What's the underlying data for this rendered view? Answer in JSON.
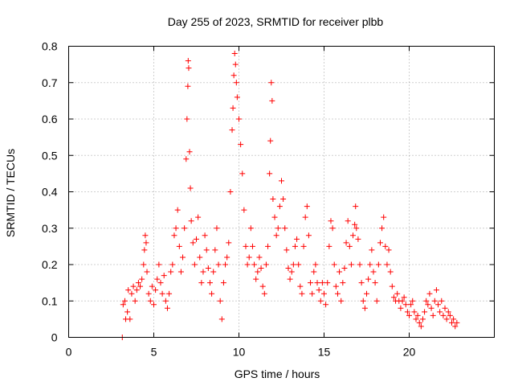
{
  "chart_data": {
    "type": "scatter",
    "title": "Day 255 of 2023, SRMTID for receiver plbb",
    "xlabel": "GPS time / hours",
    "ylabel": "SRMTID / TECUs",
    "xlim": [
      0,
      25
    ],
    "ylim": [
      0,
      0.8
    ],
    "xticks": [
      0,
      5,
      10,
      15,
      20
    ],
    "xtick_labels": [
      "0",
      "5",
      "10",
      "15",
      "20"
    ],
    "yticks": [
      0,
      0.1,
      0.2,
      0.3,
      0.4,
      0.5,
      0.6,
      0.7,
      0.8
    ],
    "ytick_labels": [
      "0",
      "0.1",
      "0.2",
      "0.3",
      "0.4",
      "0.5",
      "0.6",
      "0.7",
      "0.8"
    ],
    "grid": true,
    "marker": "plus",
    "color": "#ff0000",
    "series": [
      {
        "name": "SRMTID",
        "points": [
          [
            3.15,
            0.0
          ],
          [
            3.2,
            0.09
          ],
          [
            3.3,
            0.1
          ],
          [
            3.35,
            0.05
          ],
          [
            3.45,
            0.07
          ],
          [
            3.5,
            0.13
          ],
          [
            3.6,
            0.05
          ],
          [
            3.7,
            0.12
          ],
          [
            3.8,
            0.14
          ],
          [
            3.9,
            0.1
          ],
          [
            4.0,
            0.13
          ],
          [
            4.1,
            0.15
          ],
          [
            4.2,
            0.14
          ],
          [
            4.3,
            0.16
          ],
          [
            4.4,
            0.2
          ],
          [
            4.45,
            0.24
          ],
          [
            4.5,
            0.28
          ],
          [
            4.55,
            0.26
          ],
          [
            4.6,
            0.18
          ],
          [
            4.7,
            0.12
          ],
          [
            4.8,
            0.1
          ],
          [
            4.9,
            0.14
          ],
          [
            5.0,
            0.09
          ],
          [
            5.1,
            0.13
          ],
          [
            5.2,
            0.16
          ],
          [
            5.3,
            0.2
          ],
          [
            5.4,
            0.15
          ],
          [
            5.5,
            0.12
          ],
          [
            5.6,
            0.17
          ],
          [
            5.7,
            0.1
          ],
          [
            5.8,
            0.08
          ],
          [
            5.9,
            0.12
          ],
          [
            6.0,
            0.18
          ],
          [
            6.1,
            0.2
          ],
          [
            6.2,
            0.28
          ],
          [
            6.3,
            0.3
          ],
          [
            6.4,
            0.35
          ],
          [
            6.5,
            0.25
          ],
          [
            6.6,
            0.18
          ],
          [
            6.7,
            0.22
          ],
          [
            6.8,
            0.3
          ],
          [
            6.9,
            0.49
          ],
          [
            6.95,
            0.6
          ],
          [
            7.0,
            0.69
          ],
          [
            7.02,
            0.76
          ],
          [
            7.05,
            0.74
          ],
          [
            7.1,
            0.51
          ],
          [
            7.15,
            0.41
          ],
          [
            7.2,
            0.32
          ],
          [
            7.3,
            0.26
          ],
          [
            7.4,
            0.2
          ],
          [
            7.5,
            0.27
          ],
          [
            7.6,
            0.33
          ],
          [
            7.7,
            0.22
          ],
          [
            7.8,
            0.15
          ],
          [
            7.9,
            0.18
          ],
          [
            8.0,
            0.28
          ],
          [
            8.1,
            0.24
          ],
          [
            8.2,
            0.19
          ],
          [
            8.3,
            0.15
          ],
          [
            8.4,
            0.12
          ],
          [
            8.5,
            0.18
          ],
          [
            8.6,
            0.24
          ],
          [
            8.7,
            0.3
          ],
          [
            8.8,
            0.2
          ],
          [
            8.9,
            0.1
          ],
          [
            9.0,
            0.05
          ],
          [
            9.1,
            0.15
          ],
          [
            9.2,
            0.2
          ],
          [
            9.3,
            0.22
          ],
          [
            9.4,
            0.26
          ],
          [
            9.5,
            0.4
          ],
          [
            9.6,
            0.57
          ],
          [
            9.65,
            0.63
          ],
          [
            9.7,
            0.72
          ],
          [
            9.75,
            0.78
          ],
          [
            9.8,
            0.75
          ],
          [
            9.85,
            0.7
          ],
          [
            9.9,
            0.66
          ],
          [
            10.0,
            0.6
          ],
          [
            10.1,
            0.53
          ],
          [
            10.2,
            0.45
          ],
          [
            10.3,
            0.35
          ],
          [
            10.4,
            0.25
          ],
          [
            10.5,
            0.2
          ],
          [
            10.6,
            0.22
          ],
          [
            10.7,
            0.3
          ],
          [
            10.8,
            0.25
          ],
          [
            10.9,
            0.2
          ],
          [
            11.0,
            0.16
          ],
          [
            11.1,
            0.18
          ],
          [
            11.2,
            0.22
          ],
          [
            11.3,
            0.19
          ],
          [
            11.4,
            0.14
          ],
          [
            11.5,
            0.12
          ],
          [
            11.6,
            0.2
          ],
          [
            11.7,
            0.25
          ],
          [
            11.8,
            0.45
          ],
          [
            11.85,
            0.54
          ],
          [
            11.9,
            0.7
          ],
          [
            11.95,
            0.65
          ],
          [
            12.0,
            0.38
          ],
          [
            12.1,
            0.33
          ],
          [
            12.2,
            0.28
          ],
          [
            12.3,
            0.3
          ],
          [
            12.4,
            0.36
          ],
          [
            12.5,
            0.43
          ],
          [
            12.6,
            0.38
          ],
          [
            12.7,
            0.3
          ],
          [
            12.8,
            0.24
          ],
          [
            12.9,
            0.19
          ],
          [
            13.0,
            0.16
          ],
          [
            13.1,
            0.18
          ],
          [
            13.2,
            0.2
          ],
          [
            13.3,
            0.25
          ],
          [
            13.4,
            0.27
          ],
          [
            13.5,
            0.2
          ],
          [
            13.6,
            0.14
          ],
          [
            13.7,
            0.12
          ],
          [
            13.8,
            0.25
          ],
          [
            13.9,
            0.33
          ],
          [
            14.0,
            0.36
          ],
          [
            14.1,
            0.28
          ],
          [
            14.2,
            0.15
          ],
          [
            14.3,
            0.12
          ],
          [
            14.4,
            0.18
          ],
          [
            14.5,
            0.2
          ],
          [
            14.6,
            0.15
          ],
          [
            14.7,
            0.13
          ],
          [
            14.8,
            0.1
          ],
          [
            14.9,
            0.15
          ],
          [
            15.0,
            0.12
          ],
          [
            15.1,
            0.09
          ],
          [
            15.2,
            0.15
          ],
          [
            15.3,
            0.25
          ],
          [
            15.4,
            0.32
          ],
          [
            15.5,
            0.3
          ],
          [
            15.6,
            0.2
          ],
          [
            15.7,
            0.14
          ],
          [
            15.8,
            0.12
          ],
          [
            15.9,
            0.18
          ],
          [
            16.0,
            0.1
          ],
          [
            16.1,
            0.15
          ],
          [
            16.2,
            0.19
          ],
          [
            16.3,
            0.26
          ],
          [
            16.4,
            0.32
          ],
          [
            16.5,
            0.25
          ],
          [
            16.6,
            0.2
          ],
          [
            16.7,
            0.28
          ],
          [
            16.8,
            0.31
          ],
          [
            16.85,
            0.36
          ],
          [
            16.9,
            0.3
          ],
          [
            17.0,
            0.27
          ],
          [
            17.1,
            0.2
          ],
          [
            17.2,
            0.15
          ],
          [
            17.3,
            0.1
          ],
          [
            17.4,
            0.08
          ],
          [
            17.5,
            0.12
          ],
          [
            17.6,
            0.16
          ],
          [
            17.7,
            0.2
          ],
          [
            17.8,
            0.24
          ],
          [
            17.9,
            0.18
          ],
          [
            18.0,
            0.15
          ],
          [
            18.1,
            0.1
          ],
          [
            18.2,
            0.2
          ],
          [
            18.3,
            0.26
          ],
          [
            18.4,
            0.3
          ],
          [
            18.5,
            0.33
          ],
          [
            18.6,
            0.25
          ],
          [
            18.7,
            0.2
          ],
          [
            18.8,
            0.24
          ],
          [
            18.9,
            0.18
          ],
          [
            19.0,
            0.14
          ],
          [
            19.1,
            0.11
          ],
          [
            19.2,
            0.1
          ],
          [
            19.3,
            0.12
          ],
          [
            19.4,
            0.1
          ],
          [
            19.5,
            0.08
          ],
          [
            19.6,
            0.1
          ],
          [
            19.7,
            0.11
          ],
          [
            19.8,
            0.09
          ],
          [
            19.9,
            0.07
          ],
          [
            20.0,
            0.06
          ],
          [
            20.1,
            0.09
          ],
          [
            20.2,
            0.1
          ],
          [
            20.3,
            0.07
          ],
          [
            20.4,
            0.05
          ],
          [
            20.5,
            0.06
          ],
          [
            20.6,
            0.04
          ],
          [
            20.7,
            0.03
          ],
          [
            20.8,
            0.05
          ],
          [
            20.9,
            0.07
          ],
          [
            21.0,
            0.1
          ],
          [
            21.1,
            0.09
          ],
          [
            21.2,
            0.12
          ],
          [
            21.3,
            0.08
          ],
          [
            21.4,
            0.06
          ],
          [
            21.5,
            0.1
          ],
          [
            21.6,
            0.13
          ],
          [
            21.7,
            0.09
          ],
          [
            21.8,
            0.07
          ],
          [
            21.9,
            0.1
          ],
          [
            22.0,
            0.06
          ],
          [
            22.1,
            0.08
          ],
          [
            22.2,
            0.05
          ],
          [
            22.3,
            0.07
          ],
          [
            22.4,
            0.06
          ],
          [
            22.5,
            0.04
          ],
          [
            22.6,
            0.05
          ],
          [
            22.7,
            0.03
          ],
          [
            22.8,
            0.04
          ]
        ]
      }
    ]
  }
}
